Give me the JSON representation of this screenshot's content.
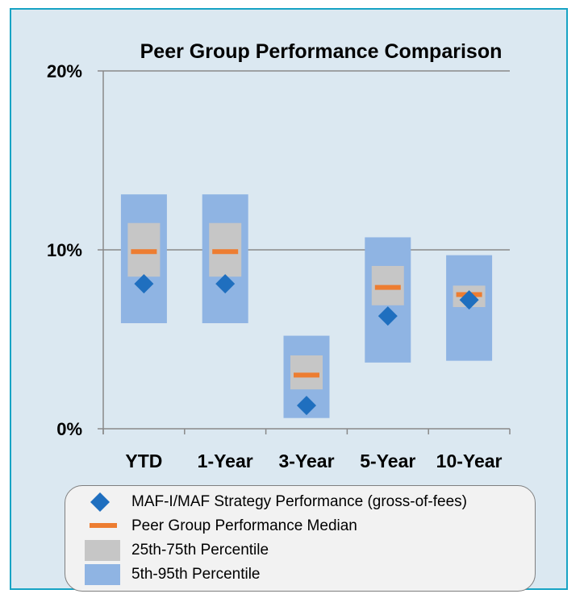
{
  "chart_data": {
    "type": "box-range",
    "title": "Peer Group Performance Comparison",
    "categories": [
      "YTD",
      "1-Year",
      "3-Year",
      "5-Year",
      "10-Year"
    ],
    "ylim": [
      0,
      20
    ],
    "yticks": [
      0,
      10,
      20
    ],
    "ytick_labels": [
      "0%",
      "10%",
      "20%"
    ],
    "grid": true,
    "series": [
      {
        "name": "MAF-I/MAF Strategy Performance (gross-of-fees)",
        "kind": "marker",
        "values": [
          8.1,
          8.1,
          1.3,
          6.3,
          7.2
        ]
      },
      {
        "name": "Peer Group Performance Median",
        "kind": "median",
        "values": [
          9.9,
          9.9,
          3.0,
          7.9,
          7.5
        ]
      },
      {
        "name": "25th-75th Percentile",
        "kind": "range",
        "low": [
          8.5,
          8.5,
          2.2,
          6.9,
          6.8
        ],
        "high": [
          11.5,
          11.5,
          4.1,
          9.1,
          8.0
        ]
      },
      {
        "name": "5th-95th Percentile",
        "kind": "range",
        "low": [
          5.9,
          5.9,
          0.6,
          3.7,
          3.8
        ],
        "high": [
          13.1,
          13.1,
          5.2,
          10.7,
          9.7
        ]
      }
    ],
    "colors": {
      "marker": "#1f6fbf",
      "median": "#ed7d31",
      "iqr": "#c6c6c6",
      "range": "#8fb4e3",
      "axis": "#898989",
      "grid": "#898989"
    },
    "legend": [
      {
        "label": "MAF-I/MAF Strategy Performance (gross-of-fees)",
        "icon": "diamond-icon"
      },
      {
        "label": "Peer Group Performance Median",
        "icon": "dash-icon"
      },
      {
        "label": "25th-75th Percentile",
        "icon": "gray-box-icon"
      },
      {
        "label": "5th-95th Percentile",
        "icon": "blue-box-icon"
      }
    ]
  }
}
